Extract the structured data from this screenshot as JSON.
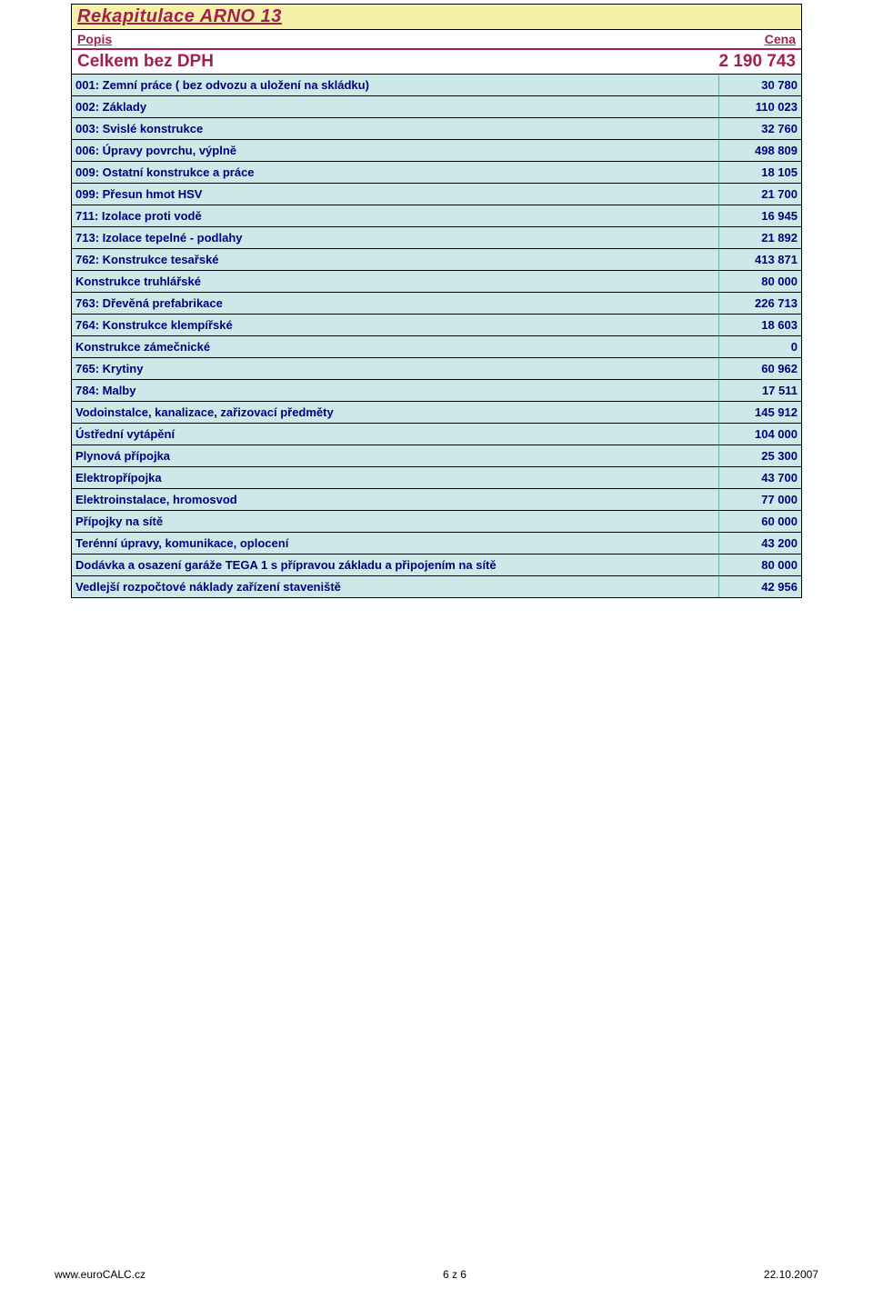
{
  "title": "Rekapitulace ARNO 13",
  "colors": {
    "title_bg": "#f7f1a8",
    "title_text": "#a02050",
    "row_bg": "#cde8e8",
    "row_text": "#000080",
    "header_text": "#a02050"
  },
  "header": {
    "popis": "Popis",
    "cena": "Cena"
  },
  "total": {
    "label": "Celkem bez DPH",
    "value": "2 190 743"
  },
  "rows": [
    {
      "popis": "001: Zemní práce (  bez odvozu a uložení na skládku)",
      "cena": "30 780"
    },
    {
      "popis": "002: Základy",
      "cena": "110 023"
    },
    {
      "popis": "003: Svislé konstrukce",
      "cena": "32 760"
    },
    {
      "popis": "006: Úpravy povrchu, výplně",
      "cena": "498 809"
    },
    {
      "popis": "009: Ostatní konstrukce a práce",
      "cena": "18 105"
    },
    {
      "popis": "099: Přesun hmot HSV",
      "cena": "21 700"
    },
    {
      "popis": "711: Izolace proti vodě",
      "cena": "16 945"
    },
    {
      "popis": "713: Izolace tepelné  - podlahy",
      "cena": "21 892"
    },
    {
      "popis": "762: Konstrukce tesařské",
      "cena": "413 871"
    },
    {
      "popis": "Konstrukce truhlářské",
      "cena": "80 000"
    },
    {
      "popis": "763: Dřevěná prefabrikace",
      "cena": "226 713"
    },
    {
      "popis": "764: Konstrukce klempířské",
      "cena": "18 603"
    },
    {
      "popis": "Konstrukce zámečnické",
      "cena": "0"
    },
    {
      "popis": "765: Krytiny",
      "cena": "60 962"
    },
    {
      "popis": "784: Malby",
      "cena": "17 511"
    },
    {
      "popis": "Vodoinstalce, kanalizace, zařizovací předměty",
      "cena": "145 912"
    },
    {
      "popis": "Ústřední vytápění",
      "cena": "104 000"
    },
    {
      "popis": "Plynová přípojka",
      "cena": "25 300"
    },
    {
      "popis": "Elektropřípojka",
      "cena": "43 700"
    },
    {
      "popis": "Elektroinstalace, hromosvod",
      "cena": "77 000"
    },
    {
      "popis": "Přípojky na sítě",
      "cena": "60 000"
    },
    {
      "popis": "Terénní úpravy, komunikace, oplocení",
      "cena": "43 200"
    },
    {
      "popis": "Dodávka a osazení garáže TEGA 1 s přípravou základu a připojením na sítě",
      "cena": "80 000"
    },
    {
      "popis": "Vedlejší rozpočtové náklady zařízení staveniště",
      "cena": "42 956"
    }
  ],
  "footer": {
    "left": "www.euroCALC.cz",
    "center": "6 z 6",
    "right": "22.10.2007"
  }
}
